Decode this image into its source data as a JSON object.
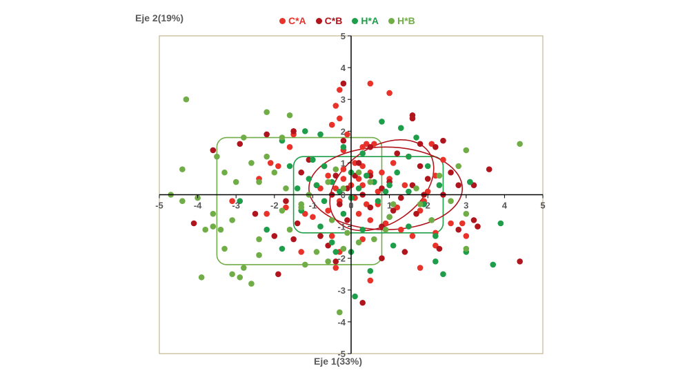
{
  "chart_data": {
    "type": "scatter",
    "xlabel": "Eje 1(33%)",
    "ylabel": "Eje 2(19%)",
    "xlim": [
      -5,
      5
    ],
    "ylim": [
      -5,
      5
    ],
    "xticks": [
      "-5",
      "-4",
      "-3",
      "-2",
      "-1",
      "0",
      "1",
      "2",
      "3",
      "4",
      "5"
    ],
    "yticks": [
      "-5",
      "-4",
      "-3",
      "-2",
      "-1",
      "0",
      "1",
      "2",
      "3",
      "4",
      "5"
    ],
    "grid": false,
    "legend_position": "top-center",
    "series": [
      {
        "name": "C*A",
        "color": "#e8322a",
        "points": [
          [
            -0.3,
            3.3
          ],
          [
            0.5,
            3.5
          ],
          [
            1.0,
            3.2
          ],
          [
            -0.4,
            2.8
          ],
          [
            -0.3,
            2.4
          ],
          [
            -0.5,
            2.2
          ],
          [
            -0.1,
            1.9
          ],
          [
            0.6,
            1.6
          ],
          [
            0.4,
            1.6
          ],
          [
            -1.5,
            1.9
          ],
          [
            0.3,
            1.5
          ],
          [
            -0.2,
            1.4
          ],
          [
            0.1,
            1.0
          ],
          [
            0.3,
            0.9
          ],
          [
            1.1,
            1.0
          ],
          [
            -0.2,
            0.8
          ],
          [
            0.5,
            0.7
          ],
          [
            0.8,
            0.7
          ],
          [
            -0.6,
            0.6
          ],
          [
            -0.2,
            0.5
          ],
          [
            0.2,
            0.5
          ],
          [
            0.6,
            0.4
          ],
          [
            1.0,
            0.5
          ],
          [
            0.0,
            0.3
          ],
          [
            0.3,
            0.3
          ],
          [
            -0.8,
            0.2
          ],
          [
            -0.4,
            0.2
          ],
          [
            1.4,
            0.3
          ],
          [
            0.7,
            0.1
          ],
          [
            0.1,
            -0.1
          ],
          [
            -0.3,
            -0.2
          ],
          [
            0.4,
            -0.3
          ],
          [
            0.7,
            -0.3
          ],
          [
            1.2,
            -0.4
          ],
          [
            1.8,
            -0.5
          ],
          [
            -0.6,
            -0.5
          ],
          [
            0.2,
            -0.6
          ],
          [
            0.5,
            -0.8
          ],
          [
            -1.0,
            -0.7
          ],
          [
            0.9,
            -0.9
          ],
          [
            1.3,
            -1.1
          ],
          [
            -0.5,
            -1.3
          ],
          [
            0.3,
            -1.4
          ],
          [
            1.6,
            -1.3
          ],
          [
            2.2,
            -1.2
          ],
          [
            -1.3,
            -1.8
          ],
          [
            -0.4,
            -2.3
          ],
          [
            0.5,
            -2.7
          ],
          [
            1.8,
            -2.3
          ],
          [
            2.6,
            -0.9
          ],
          [
            2.2,
            -1.6
          ],
          [
            2.0,
            0.1
          ],
          [
            2.2,
            0.6
          ],
          [
            1.5,
            1.2
          ],
          [
            2.1,
            1.6
          ],
          [
            2.4,
            1.1
          ],
          [
            -1.9,
            0.9
          ],
          [
            -1.6,
            1.5
          ],
          [
            -2.1,
            1.0
          ],
          [
            -3.1,
            -0.2
          ],
          [
            -2.2,
            -0.6
          ],
          [
            -1.7,
            -0.4
          ],
          [
            -1.2,
            -0.6
          ],
          [
            -2.4,
            0.5
          ],
          [
            2.9,
            -0.9
          ],
          [
            3.0,
            -1.3
          ],
          [
            -0.3,
            -1.8
          ],
          [
            1.9,
            -0.2
          ]
        ]
      },
      {
        "name": "C*B",
        "color": "#b0141c",
        "points": [
          [
            -0.2,
            3.5
          ],
          [
            1.6,
            2.5
          ],
          [
            1.6,
            2.4
          ],
          [
            -1.5,
            2.0
          ],
          [
            -2.2,
            1.9
          ],
          [
            -0.2,
            1.7
          ],
          [
            1.8,
            1.6
          ],
          [
            2.4,
            1.7
          ],
          [
            0.5,
            1.5
          ],
          [
            1.2,
            1.3
          ],
          [
            2.2,
            1.5
          ],
          [
            -3.6,
            1.4
          ],
          [
            -1.1,
            1.1
          ],
          [
            -0.7,
            0.9
          ],
          [
            0.2,
            1.0
          ],
          [
            1.8,
            0.9
          ],
          [
            2.6,
            0.7
          ],
          [
            3.6,
            0.8
          ],
          [
            -1.3,
            0.7
          ],
          [
            -0.4,
            0.6
          ],
          [
            0.5,
            0.6
          ],
          [
            1.0,
            0.4
          ],
          [
            1.6,
            0.3
          ],
          [
            3.1,
            0.4
          ],
          [
            -0.9,
            0.3
          ],
          [
            -0.1,
            0.2
          ],
          [
            0.8,
            0.2
          ],
          [
            2.4,
            0.0
          ],
          [
            3.2,
            0.3
          ],
          [
            -0.5,
            0.0
          ],
          [
            0.3,
            0.0
          ],
          [
            1.3,
            -0.1
          ],
          [
            1.9,
            0.0
          ],
          [
            2.0,
            0.5
          ],
          [
            -0.3,
            -0.3
          ],
          [
            0.5,
            -0.4
          ],
          [
            1.1,
            -0.5
          ],
          [
            1.7,
            -0.6
          ],
          [
            -0.1,
            -0.8
          ],
          [
            0.8,
            -1.0
          ],
          [
            -1.4,
            -0.9
          ],
          [
            -4.1,
            -0.9
          ],
          [
            -2.0,
            -1.3
          ],
          [
            -1.5,
            -1.4
          ],
          [
            -0.6,
            -1.6
          ],
          [
            2.3,
            -1.7
          ],
          [
            1.4,
            -1.8
          ],
          [
            0.8,
            -2.0
          ],
          [
            -0.4,
            -2.1
          ],
          [
            -1.9,
            -2.5
          ],
          [
            0.3,
            -3.4
          ],
          [
            4.4,
            -2.1
          ],
          [
            3.3,
            -1.0
          ],
          [
            2.8,
            -1.1
          ],
          [
            -2.5,
            -0.6
          ],
          [
            -2.9,
            1.6
          ],
          [
            -1.7,
            -0.2
          ],
          [
            0.1,
            0.6
          ],
          [
            -0.8,
            -1.3
          ],
          [
            2.8,
            0.3
          ],
          [
            3.2,
            -0.8
          ]
        ]
      },
      {
        "name": "H*A",
        "color": "#1e9e4a",
        "points": [
          [
            0.8,
            2.3
          ],
          [
            1.3,
            2.1
          ],
          [
            -1.2,
            2.0
          ],
          [
            -0.8,
            1.9
          ],
          [
            -1.8,
            1.7
          ],
          [
            -0.2,
            1.5
          ],
          [
            1.7,
            1.8
          ],
          [
            -1.0,
            1.1
          ],
          [
            0.3,
            1.3
          ],
          [
            1.5,
            1.2
          ],
          [
            -1.6,
            0.9
          ],
          [
            -0.7,
            0.9
          ],
          [
            0.0,
            0.7
          ],
          [
            0.4,
            0.6
          ],
          [
            1.2,
            0.7
          ],
          [
            2.0,
            0.9
          ],
          [
            -1.1,
            0.5
          ],
          [
            -0.5,
            0.4
          ],
          [
            0.6,
            0.4
          ],
          [
            1.0,
            0.3
          ],
          [
            2.3,
            0.3
          ],
          [
            3.1,
            0.4
          ],
          [
            -1.4,
            0.2
          ],
          [
            -0.3,
            0.1
          ],
          [
            0.2,
            0.2
          ],
          [
            1.5,
            0.1
          ],
          [
            -0.7,
            -0.2
          ],
          [
            0.0,
            -0.1
          ],
          [
            0.7,
            -0.2
          ],
          [
            1.9,
            -0.3
          ],
          [
            -1.3,
            -0.5
          ],
          [
            -0.2,
            -0.6
          ],
          [
            1.0,
            -0.7
          ],
          [
            2.1,
            -0.8
          ],
          [
            -0.8,
            -1.0
          ],
          [
            0.3,
            -1.1
          ],
          [
            1.5,
            -1.0
          ],
          [
            2.2,
            -1.3
          ],
          [
            -1.8,
            -1.7
          ],
          [
            -0.5,
            -1.5
          ],
          [
            0.0,
            -1.8
          ],
          [
            1.1,
            -1.6
          ],
          [
            2.2,
            -2.1
          ],
          [
            3.7,
            -2.2
          ],
          [
            2.4,
            -2.5
          ],
          [
            3.0,
            -1.8
          ],
          [
            3.9,
            -0.9
          ],
          [
            0.5,
            -2.4
          ],
          [
            0.1,
            -3.2
          ],
          [
            -2.9,
            -0.2
          ],
          [
            -2.2,
            -1.1
          ],
          [
            -0.9,
            0.3
          ],
          [
            -0.4,
            -1.8
          ],
          [
            0.9,
            0.1
          ]
        ]
      },
      {
        "name": "H*B",
        "color": "#70ad47",
        "points": [
          [
            -4.3,
            3.0
          ],
          [
            -2.2,
            2.6
          ],
          [
            -1.6,
            2.5
          ],
          [
            -1.8,
            1.8
          ],
          [
            -2.0,
            0.7
          ],
          [
            -2.2,
            1.2
          ],
          [
            -3.5,
            1.2
          ],
          [
            -2.8,
            1.8
          ],
          [
            -2.6,
            1.0
          ],
          [
            -3.3,
            0.7
          ],
          [
            -4.4,
            0.8
          ],
          [
            -3.0,
            0.4
          ],
          [
            -2.4,
            0.4
          ],
          [
            -1.7,
            0.2
          ],
          [
            -1.1,
            0.0
          ],
          [
            -1.3,
            -0.3
          ],
          [
            -0.6,
            0.4
          ],
          [
            -0.4,
            0.8
          ],
          [
            0.2,
            0.7
          ],
          [
            -0.2,
            0.2
          ],
          [
            0.5,
            0.4
          ],
          [
            1.1,
            -0.3
          ],
          [
            1.7,
            0.2
          ],
          [
            2.3,
            0.6
          ],
          [
            2.8,
            0.9
          ],
          [
            3.0,
            1.4
          ],
          [
            4.4,
            1.6
          ],
          [
            -4.7,
            0.0
          ],
          [
            -4.4,
            -0.2
          ],
          [
            -4.0,
            -0.1
          ],
          [
            -3.6,
            -0.6
          ],
          [
            -3.1,
            -0.8
          ],
          [
            -3.6,
            -1.0
          ],
          [
            -3.4,
            -1.1
          ],
          [
            -3.8,
            -1.1
          ],
          [
            -2.4,
            -1.4
          ],
          [
            -1.6,
            -1.1
          ],
          [
            -1.8,
            -0.5
          ],
          [
            -1.3,
            -0.4
          ],
          [
            -0.5,
            -0.8
          ],
          [
            -0.1,
            -1.2
          ],
          [
            0.2,
            -1.5
          ],
          [
            0.6,
            -1.4
          ],
          [
            -0.2,
            -1.7
          ],
          [
            -0.6,
            -2.1
          ],
          [
            -1.2,
            -2.2
          ],
          [
            -2.8,
            -2.3
          ],
          [
            -2.6,
            -2.8
          ],
          [
            -3.1,
            -2.5
          ],
          [
            -3.3,
            -1.7
          ],
          [
            -3.9,
            -2.6
          ],
          [
            -2.9,
            -2.6
          ],
          [
            1.8,
            -0.3
          ],
          [
            2.1,
            -0.8
          ],
          [
            2.6,
            -0.2
          ],
          [
            3.0,
            -0.6
          ],
          [
            3.0,
            -1.7
          ],
          [
            -0.3,
            -3.7
          ],
          [
            0.9,
            -1.1
          ],
          [
            1.0,
            -0.7
          ],
          [
            -0.9,
            -1.8
          ],
          [
            -2.4,
            -1.9
          ]
        ]
      }
    ],
    "shapes": [
      {
        "kind": "rounded-rect",
        "color": "#70ad47",
        "x": [
          -3.5,
          0.8
        ],
        "y": [
          -2.2,
          1.8
        ]
      },
      {
        "kind": "rounded-rect",
        "color": "#1e9e4a",
        "x": [
          -1.5,
          2.4
        ],
        "y": [
          -1.2,
          1.2
        ]
      },
      {
        "kind": "ellipse",
        "color": "#b0141c",
        "cx": 0.9,
        "cy": 0.2,
        "rx": 2.0,
        "ry": 1.3,
        "rotate": 0
      },
      {
        "kind": "ellipse",
        "color": "#b0141c",
        "cx": 0.8,
        "cy": 0.3,
        "rx": 1.5,
        "ry": 1.2,
        "rotate": -35
      }
    ]
  }
}
